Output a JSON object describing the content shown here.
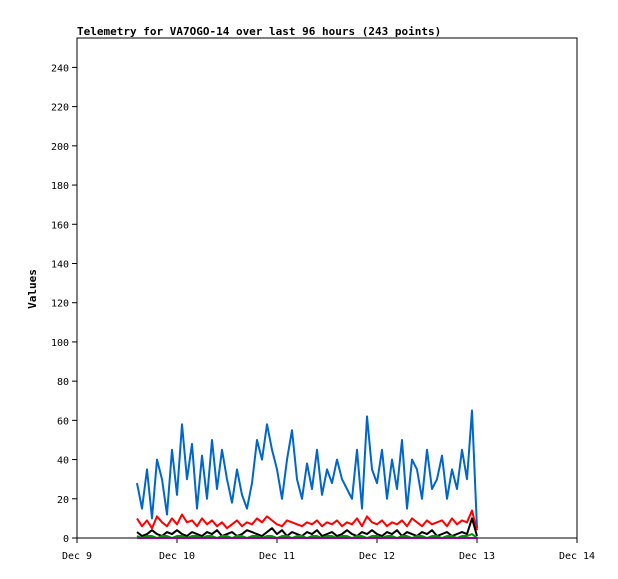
{
  "chart_data": {
    "type": "line",
    "title": "Telemetry for VA7OGO-14 over last 96 hours (243 points)",
    "xlabel": "",
    "ylabel": "Values",
    "xlim": [
      "Dec 9",
      "Dec 14"
    ],
    "ylim": [
      0,
      255
    ],
    "x_ticks": [
      "Dec 9",
      "Dec 10",
      "Dec 11",
      "Dec 12",
      "Dec 13",
      "Dec 14"
    ],
    "y_ticks": [
      0,
      20,
      40,
      60,
      80,
      100,
      120,
      140,
      160,
      180,
      200,
      220,
      240
    ],
    "grid": false,
    "legend": "none",
    "x": [
      9.6,
      9.65,
      9.7,
      9.75,
      9.8,
      9.85,
      9.9,
      9.95,
      10.0,
      10.05,
      10.1,
      10.15,
      10.2,
      10.25,
      10.3,
      10.35,
      10.4,
      10.45,
      10.5,
      10.55,
      10.6,
      10.65,
      10.7,
      10.75,
      10.8,
      10.85,
      10.9,
      10.95,
      11.0,
      11.05,
      11.1,
      11.15,
      11.2,
      11.25,
      11.3,
      11.35,
      11.4,
      11.45,
      11.5,
      11.55,
      11.6,
      11.65,
      11.7,
      11.75,
      11.8,
      11.85,
      11.9,
      11.95,
      12.0,
      12.05,
      12.1,
      12.15,
      12.2,
      12.25,
      12.3,
      12.35,
      12.4,
      12.45,
      12.5,
      12.55,
      12.6,
      12.65,
      12.7,
      12.75,
      12.8,
      12.85,
      12.9,
      12.95,
      13.0
    ],
    "series": [
      {
        "color": "#0066cc",
        "values": [
          28,
          15,
          35,
          10,
          40,
          30,
          12,
          45,
          22,
          58,
          30,
          48,
          15,
          42,
          20,
          50,
          25,
          45,
          30,
          18,
          35,
          22,
          15,
          28,
          50,
          40,
          58,
          45,
          35,
          20,
          40,
          55,
          30,
          20,
          38,
          25,
          45,
          22,
          35,
          28,
          40,
          30,
          25,
          20,
          45,
          15,
          62,
          35,
          28,
          45,
          20,
          40,
          25,
          50,
          15,
          40,
          35,
          20,
          45,
          25,
          30,
          42,
          20,
          35,
          25,
          45,
          30,
          65,
          5
        ]
      },
      {
        "color": "#ff0000",
        "values": [
          10,
          6,
          9,
          5,
          11,
          8,
          6,
          10,
          7,
          12,
          8,
          9,
          6,
          10,
          7,
          9,
          6,
          8,
          5,
          7,
          9,
          6,
          8,
          7,
          10,
          8,
          11,
          9,
          7,
          6,
          9,
          8,
          7,
          6,
          8,
          7,
          9,
          6,
          8,
          7,
          9,
          6,
          8,
          7,
          10,
          6,
          11,
          8,
          7,
          9,
          6,
          8,
          7,
          9,
          6,
          10,
          8,
          6,
          9,
          7,
          8,
          9,
          6,
          10,
          7,
          9,
          8,
          14,
          4
        ]
      },
      {
        "color": "#000000",
        "values": [
          3,
          1,
          2,
          4,
          2,
          1,
          3,
          2,
          4,
          2,
          1,
          3,
          2,
          1,
          3,
          2,
          4,
          1,
          2,
          3,
          1,
          2,
          4,
          3,
          2,
          1,
          3,
          5,
          2,
          4,
          1,
          3,
          2,
          1,
          3,
          2,
          4,
          1,
          2,
          3,
          1,
          2,
          4,
          2,
          1,
          3,
          2,
          4,
          2,
          1,
          3,
          2,
          4,
          1,
          3,
          2,
          1,
          3,
          2,
          4,
          1,
          2,
          3,
          1,
          2,
          3,
          2,
          10,
          1
        ]
      },
      {
        "color": "#009900",
        "values": [
          1,
          0,
          1,
          1,
          0,
          1,
          1,
          0,
          1,
          1,
          0,
          1,
          1,
          0,
          1,
          1,
          0,
          1,
          1,
          0,
          1,
          1,
          0,
          1,
          1,
          0,
          1,
          1,
          0,
          1,
          1,
          0,
          1,
          1,
          0,
          1,
          1,
          0,
          1,
          1,
          0,
          1,
          1,
          0,
          1,
          1,
          0,
          1,
          1,
          0,
          1,
          1,
          0,
          1,
          1,
          0,
          1,
          1,
          0,
          1,
          1,
          0,
          1,
          1,
          0,
          1,
          1,
          2,
          0
        ]
      },
      {
        "color": "#990099",
        "values": [
          0,
          0,
          0,
          0,
          0,
          0,
          0,
          0,
          0,
          0,
          0,
          0,
          0,
          0,
          0,
          0,
          0,
          0,
          0,
          0,
          0,
          0,
          0,
          0,
          0,
          0,
          0,
          0,
          0,
          0,
          0,
          0,
          0,
          0,
          0,
          0,
          0,
          0,
          0,
          0,
          0,
          0,
          0,
          0,
          0,
          0,
          0,
          0,
          0,
          0,
          0,
          0,
          0,
          0,
          0,
          0,
          0,
          0,
          0,
          0,
          0,
          0,
          0,
          0,
          0,
          0,
          0,
          0,
          0
        ]
      }
    ]
  }
}
